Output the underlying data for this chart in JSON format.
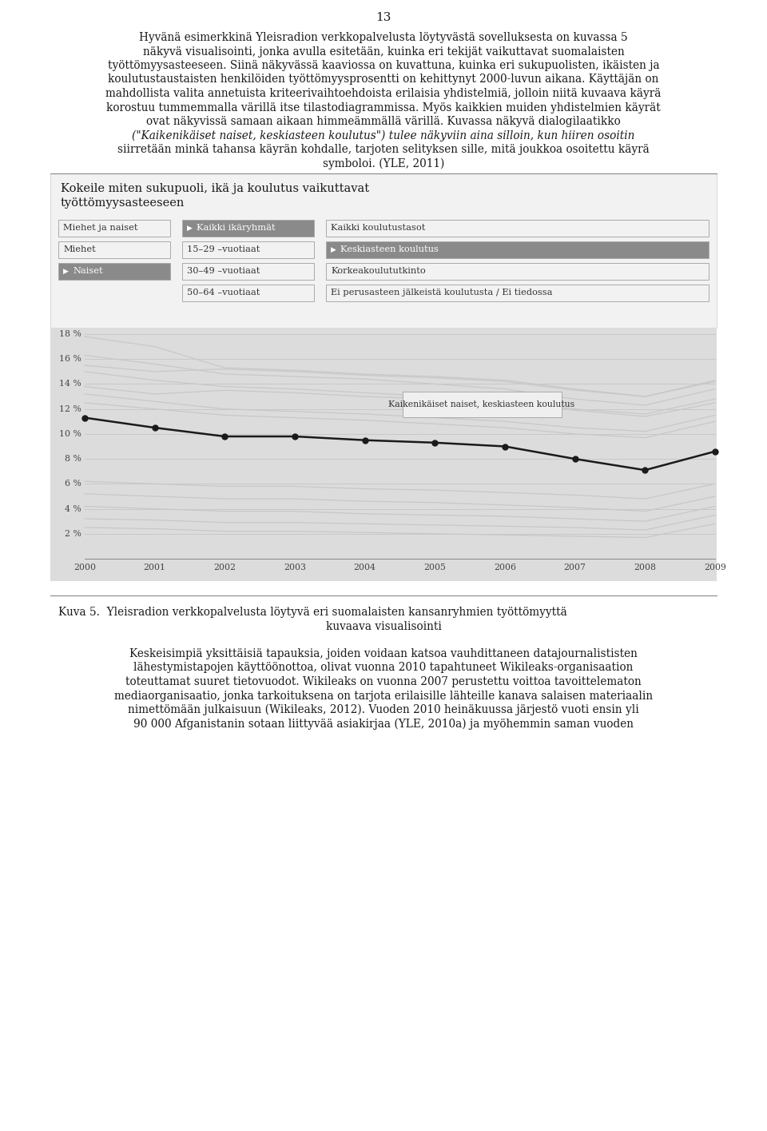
{
  "page_number": "13",
  "paragraph1_lines": [
    "Hyvänä esimerkkinä Yleisradion verkkopalvelusta löytyvästä sovelluksesta on kuvassa 5",
    "näkyvä visualisointi, jonka avulla esitetään, kuinka eri tekijät vaikuttavat suomalaisten",
    "työttömyysasteeseen. Siinä näkyvässä kaaviossa on kuvattuna, kuinka eri sukupuolisten, ikäisten ja",
    "koulutustaustaisten henkilöiden työttömyysprosentti on kehittynyt 2000-luvun aikana. Käyttäjän on",
    "mahdollista valita annetuista kriteerivaihtoehdoista erilaisia yhdistelmiä, jolloin niitä kuvaava käyrä",
    "korostuu tummemmalla värillä itse tilastodiagrammissa. Myös kaikkien muiden yhdistelmien käyrät",
    "ovat näkyvissä samaan aikaan himmeämmällä värillä. Kuvassa näkyvä dialogilaatikko",
    "(\"Kaikenikäiset naiset, keskiasteen koulutus\") tulee näkyviin aina silloin, kun hiiren osoitin",
    "siirretään minkä tahansa käyrän kohdalle, tarjoten selityksen sille, mitä joukkoa osoitettu käyrä",
    "symboloi. (YLE, 2011)"
  ],
  "widget_title_line1": "Kokeile miten sukupuoli, ikä ja koulutus vaikuttavat",
  "widget_title_line2": "työttömyysasteeseen",
  "col1_labels": [
    "Miehet ja naiset",
    "Miehet",
    "Naiset"
  ],
  "col2_labels": [
    "Kaikki ikäryhmät",
    "15–29 –vuotiaat",
    "30–49 –vuotiaat",
    "50–64 –vuotiaat"
  ],
  "col3_labels": [
    "Kaikki koulutustasot",
    "Keskiasteen koulutus",
    "Korkeakoulututkinto",
    "Ei perusasteen jälkeistä koulutusta / Ei tiedossa"
  ],
  "selected_col1": 2,
  "selected_col2": 0,
  "selected_col3": 1,
  "years": [
    2000,
    2001,
    2002,
    2003,
    2004,
    2005,
    2006,
    2007,
    2008,
    2009
  ],
  "highlighted_line": [
    11.3,
    10.5,
    9.8,
    9.8,
    9.5,
    9.3,
    9.0,
    8.0,
    7.1,
    8.6
  ],
  "faded_curves": [
    [
      17.8,
      17.0,
      15.3,
      15.1,
      14.8,
      14.6,
      14.3,
      13.6,
      13.0,
      14.3
    ],
    [
      16.3,
      15.6,
      14.8,
      14.6,
      14.4,
      14.0,
      13.6,
      12.8,
      12.3,
      13.6
    ],
    [
      15.5,
      15.0,
      15.2,
      15.0,
      14.7,
      14.5,
      14.2,
      13.5,
      13.0,
      14.2
    ],
    [
      15.0,
      14.3,
      13.8,
      13.6,
      13.3,
      13.0,
      12.6,
      12.0,
      11.6,
      12.8
    ],
    [
      13.8,
      13.2,
      13.5,
      13.3,
      13.0,
      12.8,
      12.5,
      11.9,
      11.4,
      12.5
    ],
    [
      13.2,
      12.6,
      12.0,
      11.8,
      11.6,
      11.3,
      11.0,
      10.5,
      10.2,
      11.5
    ],
    [
      12.5,
      12.0,
      11.5,
      11.3,
      11.1,
      10.8,
      10.5,
      10.0,
      9.7,
      11.0
    ],
    [
      6.2,
      6.0,
      5.8,
      5.8,
      5.6,
      5.5,
      5.3,
      5.1,
      4.8,
      6.0
    ],
    [
      5.2,
      5.0,
      4.8,
      4.8,
      4.6,
      4.5,
      4.3,
      4.1,
      3.8,
      5.0
    ],
    [
      4.2,
      4.0,
      3.8,
      3.8,
      3.6,
      3.5,
      3.4,
      3.2,
      3.0,
      4.2
    ],
    [
      3.2,
      3.1,
      2.9,
      2.9,
      2.8,
      2.7,
      2.6,
      2.5,
      2.3,
      3.5
    ],
    [
      2.5,
      2.4,
      2.2,
      2.2,
      2.1,
      2.0,
      1.9,
      1.8,
      1.7,
      2.8
    ]
  ],
  "tooltip_text": "Kaikenikäiset naiset, keskiasteen koulutus",
  "caption_title": "Kuva 5.",
  "caption_line1": "Yleisradion verkkopalvelusta löytyvä eri suomalaisten kansanryhmien työttömyyttä",
  "caption_line2": "kuvaava visualisointi",
  "paragraph2_lines": [
    "Keskeisimpiä yksittäisiä tapauksia, joiden voidaan katsoa vauhdittaneen datajournalististen",
    "lähestymistapojen käyttöönottoa, olivat vuonna 2010 tapahtuneet Wikileaks-organisaation",
    "toteuttamat suuret tietovuodot. Wikileaks on vuonna 2007 perustettu voittoa tavoittelematon",
    "mediaorganisaatio, jonka tarkoituksena on tarjota erilaisille lähteille kanava salaisen materiaalin",
    "nimettömään julkaisuun (Wikileaks, 2012). Vuoden 2010 heinäkuussa järjestö vuoti ensin yli",
    "90 000 Afganistanin sotaan liittyvää asiakirjaa (YLE, 2010a) ja myöhemmin saman vuoden"
  ]
}
